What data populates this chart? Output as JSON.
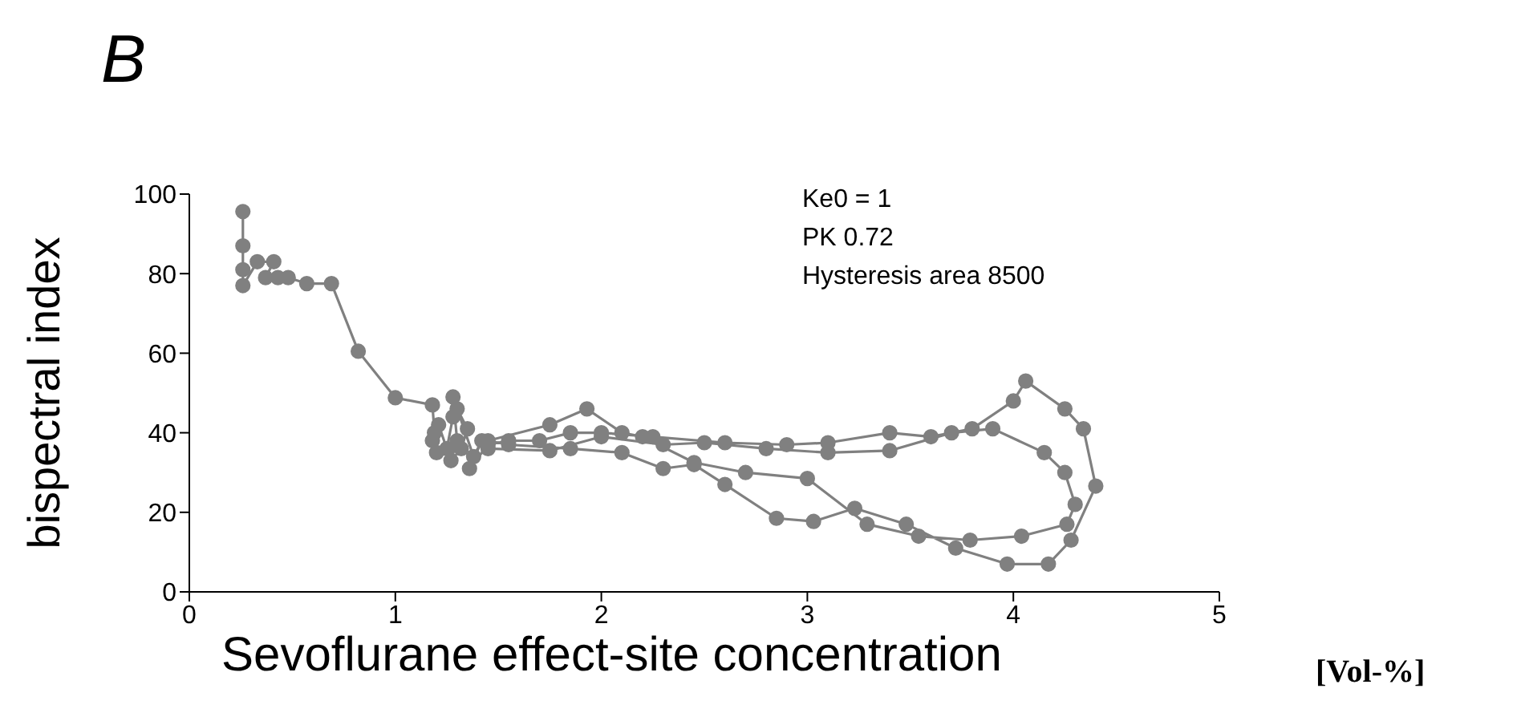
{
  "chart_data": {
    "type": "line",
    "title": "B",
    "xlabel": "Sevoflurane effect-site concentration",
    "ylabel": "bispectral index",
    "annotations": [
      "Ke0 = 1",
      "PK 0.72",
      "Hysteresis area 8500",
      "[Vol-%]"
    ],
    "xlim": [
      0,
      5
    ],
    "xticks": [
      0,
      1,
      2,
      3,
      4,
      5
    ],
    "ylim": [
      0,
      100
    ],
    "yticks": [
      0,
      20,
      40,
      60,
      80,
      100
    ],
    "grid": false,
    "marker": "circle",
    "line_style": "solid",
    "series": [
      {
        "color": "#808080",
        "x": [
          0.26,
          0.26,
          0.26,
          0.26,
          0.33,
          0.41,
          0.37,
          0.43,
          0.48,
          0.57,
          0.69,
          0.82,
          1.0,
          1.18,
          1.19,
          1.2,
          1.18,
          1.21,
          1.25,
          1.28,
          1.28,
          1.3,
          1.27,
          1.32,
          1.35,
          1.3,
          1.38,
          1.42,
          1.36,
          1.45,
          1.55,
          1.7,
          1.85,
          2.0,
          2.25,
          2.6,
          2.9,
          3.1,
          3.4,
          3.6,
          3.8,
          4.0,
          4.06,
          4.25,
          4.34,
          4.4,
          4.28,
          4.17,
          3.97,
          3.72,
          3.48,
          3.23,
          3.03,
          2.85,
          2.6,
          2.45,
          2.3,
          2.1,
          1.85,
          1.55,
          1.45,
          1.75,
          1.93,
          2.1,
          2.2,
          2.45,
          2.7,
          3.0,
          3.29,
          3.54,
          3.79,
          4.04,
          4.26,
          4.3,
          4.25,
          4.15,
          3.9,
          3.7,
          3.4,
          3.1,
          2.8,
          2.5,
          2.3,
          2.0,
          1.75,
          1.45
        ],
        "values": [
          95.6,
          87,
          81,
          77,
          83,
          83,
          79,
          79,
          79,
          77.5,
          77.5,
          60.5,
          48.8,
          47,
          40,
          35,
          38,
          42,
          36,
          44,
          49,
          38,
          33,
          36,
          41,
          46,
          34,
          38,
          31,
          37,
          38,
          38,
          40,
          40,
          39,
          37.5,
          37,
          37.5,
          40,
          39,
          41,
          48,
          53,
          46,
          41,
          26.6,
          13,
          7,
          7,
          11,
          17,
          21,
          17.7,
          18.5,
          27,
          32,
          31,
          35,
          36,
          37,
          38,
          42,
          46,
          40,
          39,
          32.5,
          30,
          28.5,
          17,
          14,
          13,
          14,
          17,
          22,
          30,
          35,
          41,
          40,
          35.5,
          35,
          36,
          37.5,
          37,
          39,
          35.5,
          36
        ]
      }
    ]
  }
}
